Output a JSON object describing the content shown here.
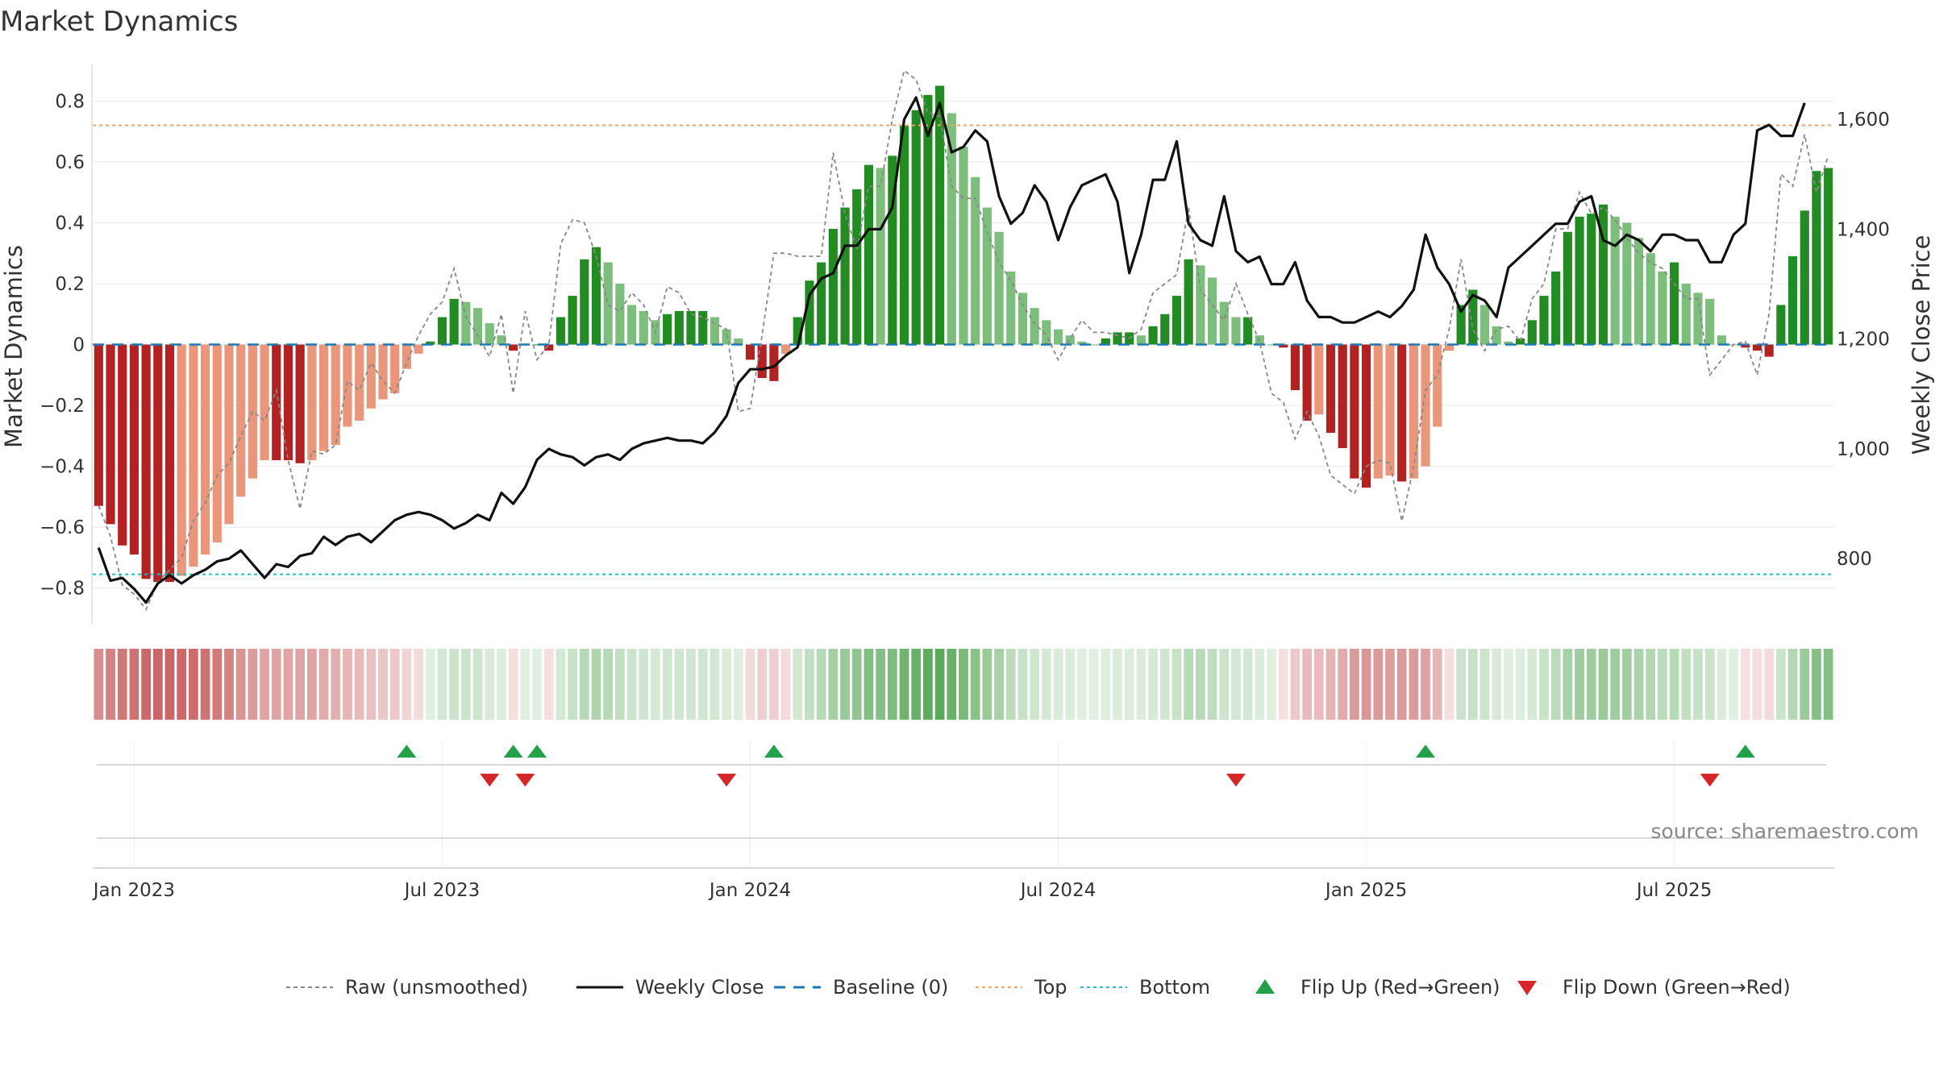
{
  "chart_data": {
    "type": "bar",
    "title": "Market Dynamics",
    "ylabel": "Market Dynamics",
    "y2label": "Weekly Close Price",
    "ylim": [
      -0.92,
      0.92
    ],
    "y2lim": [
      680,
      1700
    ],
    "y_ticks": [
      {
        "v": 0.8,
        "label": "0.8"
      },
      {
        "v": 0.6,
        "label": "0.6"
      },
      {
        "v": 0.4,
        "label": "0.4"
      },
      {
        "v": 0.2,
        "label": "0.2"
      },
      {
        "v": 0,
        "label": "0"
      },
      {
        "v": -0.2,
        "label": "−0.2"
      },
      {
        "v": -0.4,
        "label": "−0.4"
      },
      {
        "v": -0.6,
        "label": "−0.6"
      },
      {
        "v": -0.8,
        "label": "−0.8"
      }
    ],
    "y2_ticks": [
      {
        "v": 1600,
        "label": "1,600"
      },
      {
        "v": 1400,
        "label": "1,400"
      },
      {
        "v": 1200,
        "label": "1,200"
      },
      {
        "v": 1000,
        "label": "1,000"
      },
      {
        "v": 800,
        "label": "800"
      }
    ],
    "x_ticks": [
      {
        "week": 3,
        "label": "Jan 2023"
      },
      {
        "week": 29,
        "label": "Jul 2023"
      },
      {
        "week": 55,
        "label": "Jan 2024"
      },
      {
        "week": 81,
        "label": "Jul 2024"
      },
      {
        "week": 107,
        "label": "Jan 2025"
      },
      {
        "week": 133,
        "label": "Jul 2025"
      }
    ],
    "top_level": 0.72,
    "bottom_level": -0.755,
    "baseline": 0,
    "smoothed_values": [
      -0.53,
      -0.59,
      -0.66,
      -0.69,
      -0.77,
      -0.78,
      -0.78,
      -0.76,
      -0.73,
      -0.69,
      -0.65,
      -0.59,
      -0.5,
      -0.44,
      -0.38,
      -0.38,
      -0.38,
      -0.39,
      -0.38,
      -0.35,
      -0.33,
      -0.27,
      -0.25,
      -0.21,
      -0.18,
      -0.16,
      -0.08,
      -0.03,
      0.01,
      0.09,
      0.15,
      0.14,
      0.12,
      0.07,
      0.03,
      -0.02,
      0.0,
      0.0,
      -0.02,
      0.09,
      0.16,
      0.28,
      0.32,
      0.27,
      0.2,
      0.13,
      0.11,
      0.08,
      0.1,
      0.11,
      0.11,
      0.11,
      0.09,
      0.05,
      0.02,
      -0.05,
      -0.11,
      -0.12,
      -0.03,
      0.09,
      0.21,
      0.27,
      0.38,
      0.45,
      0.51,
      0.59,
      0.58,
      0.62,
      0.72,
      0.77,
      0.82,
      0.85,
      0.76,
      0.65,
      0.55,
      0.45,
      0.37,
      0.24,
      0.17,
      0.12,
      0.08,
      0.05,
      0.03,
      0.01,
      0.0,
      0.02,
      0.04,
      0.04,
      0.03,
      0.06,
      0.1,
      0.16,
      0.28,
      0.26,
      0.22,
      0.14,
      0.09,
      0.09,
      0.03,
      0.0,
      -0.01,
      -0.15,
      -0.25,
      -0.23,
      -0.29,
      -0.34,
      -0.44,
      -0.47,
      -0.44,
      -0.43,
      -0.45,
      -0.44,
      -0.4,
      -0.27,
      -0.02,
      0.13,
      0.18,
      0.13,
      0.06,
      0.01,
      0.02,
      0.08,
      0.16,
      0.24,
      0.37,
      0.42,
      0.43,
      0.46,
      0.42,
      0.4,
      0.35,
      0.3,
      0.24,
      0.27,
      0.2,
      0.17,
      0.15,
      0.03,
      0.0,
      -0.01,
      -0.02,
      -0.04,
      0.13,
      0.29,
      0.44,
      0.57,
      0.58
    ],
    "raw_values": [
      -0.53,
      -0.63,
      -0.79,
      -0.82,
      -0.87,
      -0.78,
      -0.74,
      -0.7,
      -0.58,
      -0.52,
      -0.43,
      -0.39,
      -0.3,
      -0.22,
      -0.25,
      -0.15,
      -0.38,
      -0.54,
      -0.35,
      -0.36,
      -0.33,
      -0.12,
      -0.15,
      -0.06,
      -0.12,
      -0.16,
      -0.06,
      0.03,
      0.1,
      0.14,
      0.25,
      0.09,
      0.03,
      -0.04,
      0.1,
      -0.16,
      0.11,
      -0.05,
      0.0,
      0.33,
      0.41,
      0.4,
      0.29,
      0.13,
      0.11,
      0.17,
      0.13,
      0.04,
      0.19,
      0.17,
      0.1,
      0.09,
      0.07,
      0.05,
      -0.22,
      -0.21,
      0.03,
      0.3,
      0.3,
      0.29,
      0.29,
      0.29,
      0.63,
      0.43,
      0.31,
      0.52,
      0.52,
      0.74,
      0.9,
      0.87,
      0.76,
      0.75,
      0.52,
      0.48,
      0.48,
      0.37,
      0.27,
      0.21,
      0.13,
      0.07,
      0.03,
      -0.05,
      0.02,
      0.08,
      0.04,
      0.04,
      0.03,
      0.02,
      0.05,
      0.17,
      0.2,
      0.23,
      0.45,
      0.18,
      0.13,
      0.08,
      0.2,
      0.1,
      0.01,
      -0.16,
      -0.19,
      -0.31,
      -0.22,
      -0.3,
      -0.43,
      -0.46,
      -0.49,
      -0.4,
      -0.38,
      -0.39,
      -0.58,
      -0.4,
      -0.15,
      -0.1,
      0.05,
      0.28,
      0.05,
      -0.02,
      0.05,
      0.06,
      0.01,
      0.15,
      0.2,
      0.38,
      0.38,
      0.5,
      0.43,
      0.45,
      0.41,
      0.35,
      0.3,
      0.27,
      0.25,
      0.2,
      0.15,
      0.15,
      -0.1,
      -0.05,
      0.0,
      0.01,
      -0.1,
      0.1,
      0.56,
      0.52,
      0.69,
      0.5,
      0.62
    ],
    "weekly_close": [
      820,
      760,
      765,
      745,
      720,
      755,
      770,
      755,
      770,
      780,
      795,
      800,
      815,
      790,
      765,
      790,
      785,
      805,
      810,
      840,
      825,
      840,
      845,
      830,
      850,
      870,
      880,
      885,
      880,
      870,
      855,
      865,
      880,
      870,
      920,
      900,
      930,
      980,
      1000,
      990,
      985,
      970,
      985,
      990,
      980,
      1000,
      1010,
      1015,
      1020,
      1015,
      1015,
      1010,
      1030,
      1060,
      1120,
      1145,
      1145,
      1150,
      1170,
      1185,
      1280,
      1310,
      1320,
      1370,
      1370,
      1400,
      1400,
      1440,
      1600,
      1640,
      1570,
      1630,
      1540,
      1550,
      1580,
      1560,
      1460,
      1410,
      1430,
      1480,
      1450,
      1380,
      1440,
      1480,
      1490,
      1500,
      1450,
      1320,
      1390,
      1490,
      1490,
      1560,
      1410,
      1380,
      1370,
      1460,
      1360,
      1340,
      1350,
      1300,
      1300,
      1340,
      1270,
      1240,
      1240,
      1230,
      1230,
      1240,
      1250,
      1240,
      1260,
      1290,
      1390,
      1330,
      1300,
      1250,
      1280,
      1270,
      1240,
      1330,
      1350,
      1370,
      1390,
      1410,
      1410,
      1450,
      1460,
      1380,
      1370,
      1390,
      1380,
      1360,
      1390,
      1390,
      1380,
      1380,
      1340,
      1340,
      1390,
      1410,
      1580,
      1590,
      1570,
      1570,
      1630
    ],
    "regime_flips": {
      "up": [
        26,
        35,
        37,
        57,
        112,
        139
      ],
      "down": [
        33,
        36,
        53,
        96,
        136
      ]
    },
    "legend": [
      {
        "label": "Raw (unsmoothed)",
        "style": "dotted-gray"
      },
      {
        "label": "Weekly Close",
        "style": "solid-black"
      },
      {
        "label": "Baseline (0)",
        "style": "dashed-blue"
      },
      {
        "label": "Top",
        "style": "dotted-orange"
      },
      {
        "label": "Bottom",
        "style": "dotted-cyan"
      },
      {
        "label": "Flip Up (Red→Green)",
        "style": "triangle-up-green"
      },
      {
        "label": "Flip Down (Green→Red)",
        "style": "triangle-down-red"
      }
    ],
    "source": "source: sharemaestro.com",
    "colors": {
      "strong_green": "#228B22",
      "light_green": "#7DBE7D",
      "strong_red": "#B22222",
      "light_red": "#E9967A",
      "close_line": "#111111",
      "raw_line": "#888888",
      "baseline": "#1f77b4",
      "top": "#F4A460",
      "bottom": "#17BECF",
      "flip_up": "#23A04A",
      "flip_down": "#D62728"
    }
  }
}
